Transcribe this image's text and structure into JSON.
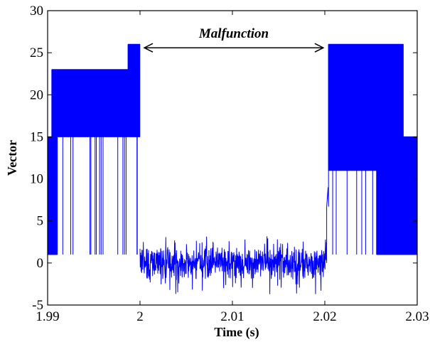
{
  "chart_data": {
    "type": "line",
    "title": "",
    "xlabel": "Time (s)",
    "ylabel": "Vector",
    "xlim": [
      1.99,
      2.03
    ],
    "ylim": [
      -5,
      30
    ],
    "xticks": [
      1.99,
      2.0,
      2.01,
      2.02,
      2.03
    ],
    "xtick_labels": [
      "1.99",
      "2",
      "2.01",
      "2.02",
      "2.03"
    ],
    "yticks": [
      -5,
      0,
      5,
      10,
      15,
      20,
      25,
      30
    ],
    "ytick_labels": [
      "-5",
      "0",
      "5",
      "10",
      "15",
      "20",
      "25",
      "30"
    ],
    "grid": false,
    "series_color": "#0000ff",
    "annotation": {
      "text": "Malfunction",
      "x_start": 2.0,
      "x_end": 2.0203,
      "y": 25.5
    },
    "segments": [
      {
        "x_start": 1.99,
        "x_end": 1.99045,
        "low": 1,
        "high": 15,
        "behavior": "switching"
      },
      {
        "x_start": 1.99045,
        "x_end": 1.99105,
        "low": 1,
        "high": 23,
        "behavior": "switching"
      },
      {
        "x_start": 1.99105,
        "x_end": 1.9987,
        "low": 15,
        "high": 23,
        "behavior": "switching_dense",
        "dips_to": 1
      },
      {
        "x_start": 1.9987,
        "x_end": 2.0,
        "low": 15,
        "high": 26,
        "behavior": "switching_dense",
        "dips_to": 1
      },
      {
        "x_start": 2.0,
        "x_end": 2.0202,
        "mean": 0,
        "range": [
          -3.8,
          3.2
        ],
        "behavior": "noise"
      },
      {
        "x_start": 2.0202,
        "x_end": 2.0204,
        "low": 6.7,
        "high": 9,
        "behavior": "transition"
      },
      {
        "x_start": 2.0204,
        "x_end": 2.0256,
        "low": 11,
        "high": 26,
        "behavior": "switching_dense",
        "dips_to": 1
      },
      {
        "x_start": 2.0256,
        "x_end": 2.0285,
        "low": 1,
        "high": 26,
        "behavior": "switching"
      },
      {
        "x_start": 2.0285,
        "x_end": 2.03,
        "low": 1,
        "high": 15,
        "behavior": "switching"
      }
    ]
  }
}
